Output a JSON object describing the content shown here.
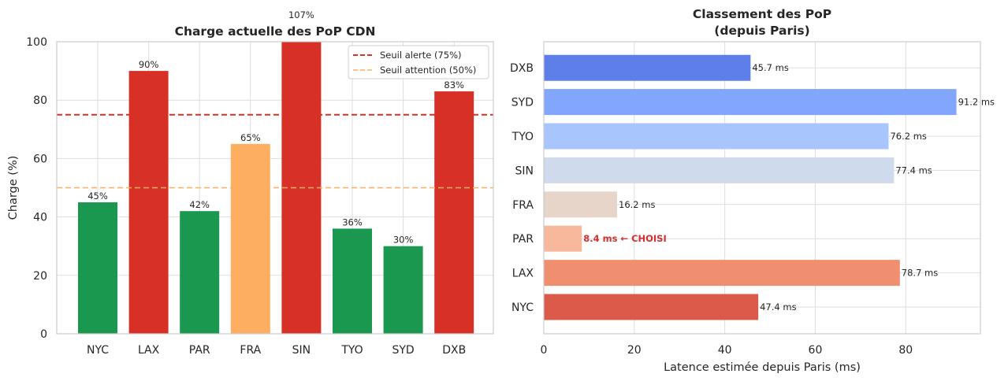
{
  "chart_data": [
    {
      "type": "bar",
      "title": "Charge actuelle des PoP CDN",
      "xlabel": "",
      "ylabel": "Charge (%)",
      "ylim": [
        0,
        100
      ],
      "yticks": [
        "0",
        "20",
        "40",
        "60",
        "80",
        "100"
      ],
      "yticks_values": [
        0,
        20,
        40,
        60,
        80,
        100
      ],
      "categories": [
        "NYC",
        "LAX",
        "PAR",
        "FRA",
        "SIN",
        "TYO",
        "SYD",
        "DXB"
      ],
      "values": [
        45,
        90,
        42,
        65,
        107,
        36,
        30,
        83
      ],
      "value_labels": [
        "45%",
        "90%",
        "42%",
        "65%",
        "107%",
        "36%",
        "30%",
        "83%"
      ],
      "colors": [
        "#1a9850",
        "#d73027",
        "#1a9850",
        "#fdae61",
        "#d73027",
        "#1a9850",
        "#1a9850",
        "#d73027"
      ],
      "grid": true,
      "thresholds": [
        {
          "name": "Seuil alerte (75%)",
          "value": 75,
          "color": "#d73027"
        },
        {
          "name": "Seuil attention (50%)",
          "value": 50,
          "color": "#fdae61"
        }
      ],
      "legend_position": "top-right"
    },
    {
      "type": "bar",
      "orientation": "horizontal",
      "title": "Classement des PoP\n(depuis Paris)",
      "title_lines": [
        "Classement des PoP",
        "(depuis Paris)"
      ],
      "xlabel": "Latence estimée depuis Paris (ms)",
      "ylabel": "",
      "xlim": [
        0,
        96.5
      ],
      "xticks": [
        "0",
        "20",
        "40",
        "60",
        "80"
      ],
      "xticks_values": [
        0,
        20,
        40,
        60,
        80
      ],
      "categories": [
        "NYC",
        "LAX",
        "PAR",
        "FRA",
        "SIN",
        "TYO",
        "SYD",
        "DXB"
      ],
      "values": [
        47.4,
        78.7,
        8.4,
        16.2,
        77.4,
        76.2,
        91.2,
        45.7
      ],
      "value_labels": [
        "47.4 ms",
        "78.7 ms",
        "8.4 ms ← CHOISI",
        "16.2 ms",
        "77.4 ms",
        "76.2 ms",
        "91.2 ms",
        "45.7 ms"
      ],
      "colors": [
        "#dc5a4a",
        "#f08f70",
        "#f7b89c",
        "#e8d5c9",
        "#cfdaed",
        "#a9c5fd",
        "#82a6fb",
        "#5f7fe8"
      ],
      "chosen_index": 2,
      "grid": true
    }
  ]
}
